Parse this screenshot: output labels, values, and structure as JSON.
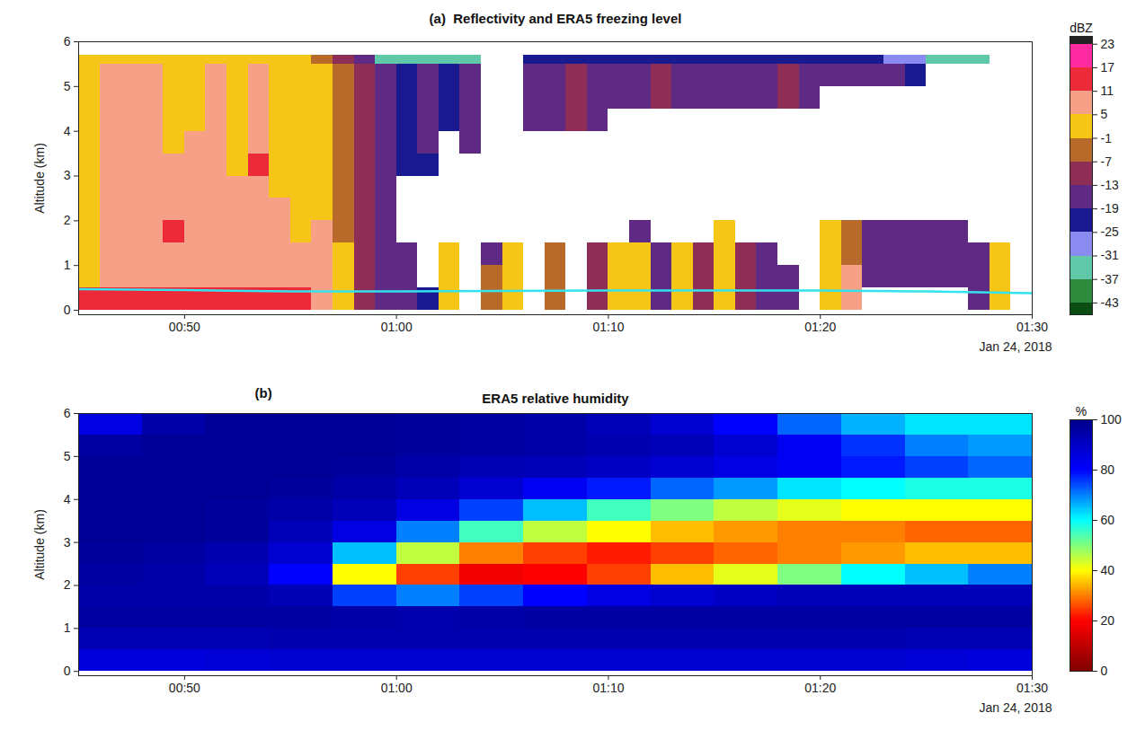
{
  "chart_data": [
    {
      "type": "heatmap",
      "title": "(a)  Reflectivity and ERA5 freezing level",
      "y_label": "Altitude (km)",
      "x_note": "Jan 24, 2018",
      "xlim": [
        45,
        90
      ],
      "xticks": [
        {
          "value": 50,
          "label": "00:50"
        },
        {
          "value": 60,
          "label": "01:00"
        },
        {
          "value": 70,
          "label": "01:10"
        },
        {
          "value": 80,
          "label": "01:20"
        },
        {
          "value": 90,
          "label": "01:30"
        }
      ],
      "ylim": [
        -0.1,
        6
      ],
      "yticks": [
        0,
        1,
        2,
        3,
        4,
        5,
        6
      ],
      "x_edges": [
        45,
        46,
        47,
        48,
        49,
        50,
        51,
        52,
        53,
        54,
        55,
        56,
        57,
        58,
        59,
        60,
        61,
        62,
        63,
        64,
        65,
        66,
        67,
        68,
        69,
        70,
        71,
        72,
        73,
        74,
        75,
        76,
        77,
        78,
        79,
        80,
        81,
        82,
        83,
        84,
        85,
        86,
        87,
        88,
        89,
        90
      ],
      "y_edges": [
        0,
        0.5,
        1,
        1.5,
        2,
        2.5,
        3,
        3.5,
        4,
        4.5,
        5,
        5.5,
        5.7
      ],
      "cells": [
        [
          14,
          14,
          14,
          14,
          14,
          14,
          14,
          14,
          14,
          14,
          14,
          8,
          2,
          -10,
          -16,
          -16,
          -22,
          2,
          null,
          -4,
          2,
          null,
          -4,
          null,
          -10,
          2,
          2,
          -16,
          2,
          -10,
          2,
          -10,
          -16,
          -16,
          null,
          2,
          8,
          null,
          null,
          null,
          null,
          null,
          -16,
          2,
          null
        ],
        [
          2,
          8,
          8,
          8,
          8,
          8,
          8,
          8,
          8,
          8,
          8,
          8,
          2,
          -10,
          -16,
          -16,
          null,
          2,
          null,
          -4,
          2,
          null,
          -4,
          null,
          -10,
          2,
          2,
          -16,
          2,
          -10,
          2,
          -10,
          -16,
          -16,
          null,
          2,
          8,
          -16,
          -16,
          -16,
          -16,
          -16,
          -16,
          2,
          null
        ],
        [
          2,
          8,
          8,
          8,
          8,
          8,
          8,
          8,
          8,
          8,
          8,
          8,
          2,
          -10,
          -16,
          -16,
          null,
          2,
          null,
          -16,
          2,
          null,
          -4,
          null,
          -10,
          2,
          2,
          -16,
          2,
          -10,
          2,
          -10,
          -16,
          null,
          null,
          2,
          -4,
          -16,
          -16,
          -16,
          -16,
          -16,
          -16,
          2,
          null
        ],
        [
          2,
          8,
          8,
          8,
          14,
          8,
          8,
          8,
          8,
          8,
          2,
          8,
          -4,
          -10,
          -16,
          null,
          null,
          null,
          null,
          null,
          null,
          null,
          null,
          null,
          null,
          null,
          -16,
          null,
          null,
          null,
          2,
          null,
          null,
          null,
          null,
          2,
          -4,
          -16,
          -16,
          -16,
          -16,
          -16,
          null,
          null,
          null
        ],
        [
          2,
          8,
          8,
          8,
          8,
          8,
          8,
          8,
          8,
          8,
          2,
          2,
          -4,
          -10,
          -16,
          null,
          null,
          null,
          null,
          null,
          null,
          null,
          null,
          null,
          null,
          null,
          null,
          null,
          null,
          null,
          null,
          null,
          null,
          null,
          null,
          null,
          null,
          null,
          null,
          null,
          null,
          null,
          null,
          null,
          null
        ],
        [
          2,
          8,
          8,
          8,
          8,
          8,
          8,
          8,
          8,
          2,
          2,
          2,
          -4,
          -10,
          -16,
          null,
          null,
          null,
          null,
          null,
          null,
          null,
          null,
          null,
          null,
          null,
          null,
          null,
          null,
          null,
          null,
          null,
          null,
          null,
          null,
          null,
          null,
          null,
          null,
          null,
          null,
          null,
          null,
          null,
          null
        ],
        [
          2,
          8,
          8,
          8,
          8,
          8,
          8,
          2,
          14,
          2,
          2,
          2,
          -4,
          -10,
          -16,
          -22,
          -22,
          null,
          null,
          null,
          null,
          null,
          null,
          null,
          null,
          null,
          null,
          null,
          null,
          null,
          null,
          null,
          null,
          null,
          null,
          null,
          null,
          null,
          null,
          null,
          null,
          null,
          null,
          null,
          null
        ],
        [
          2,
          8,
          8,
          8,
          2,
          8,
          8,
          2,
          8,
          2,
          2,
          2,
          -4,
          -10,
          -16,
          -22,
          -16,
          null,
          -16,
          null,
          null,
          null,
          null,
          null,
          null,
          null,
          null,
          null,
          null,
          null,
          null,
          null,
          null,
          null,
          null,
          null,
          null,
          null,
          null,
          null,
          null,
          null,
          null,
          null,
          null
        ],
        [
          2,
          8,
          8,
          8,
          2,
          2,
          8,
          2,
          8,
          2,
          2,
          2,
          -4,
          -10,
          -16,
          -22,
          -16,
          -22,
          -16,
          null,
          null,
          -16,
          -16,
          -10,
          -16,
          null,
          null,
          null,
          null,
          null,
          null,
          null,
          null,
          null,
          null,
          null,
          null,
          null,
          null,
          null,
          null,
          null,
          null,
          null,
          null
        ],
        [
          2,
          8,
          8,
          8,
          2,
          2,
          8,
          2,
          8,
          2,
          2,
          2,
          -4,
          -10,
          -16,
          -22,
          -16,
          -22,
          -16,
          null,
          null,
          -16,
          -16,
          -10,
          -16,
          -16,
          -16,
          -10,
          -16,
          -16,
          -16,
          -16,
          -16,
          -10,
          -16,
          null,
          null,
          null,
          null,
          null,
          null,
          null,
          null,
          null,
          null
        ],
        [
          2,
          8,
          8,
          8,
          2,
          2,
          8,
          2,
          8,
          2,
          2,
          2,
          -4,
          -10,
          -16,
          -22,
          -16,
          -22,
          -16,
          null,
          null,
          -16,
          -16,
          -10,
          -16,
          -16,
          -16,
          -10,
          -16,
          -16,
          -16,
          -16,
          -16,
          -10,
          -16,
          -16,
          -16,
          -16,
          -16,
          -22,
          null,
          null,
          null,
          null,
          null
        ],
        [
          2,
          2,
          2,
          2,
          2,
          2,
          2,
          2,
          2,
          2,
          2,
          -4,
          -10,
          -16,
          -34,
          -34,
          -34,
          -34,
          -34,
          null,
          null,
          -22,
          -22,
          -22,
          -22,
          -22,
          -22,
          -22,
          -22,
          -22,
          -22,
          -22,
          -22,
          -22,
          -22,
          -22,
          -22,
          -22,
          -28,
          -28,
          -34,
          -34,
          -34,
          null,
          null
        ]
      ],
      "line": {
        "x": [
          45,
          50,
          55,
          60,
          65,
          70,
          75,
          80,
          85,
          90
        ],
        "values": [
          0.47,
          0.45,
          0.42,
          0.42,
          0.43,
          0.44,
          0.44,
          0.44,
          0.42,
          0.38
        ],
        "color": "#33e3ee"
      },
      "colorbar": {
        "label": "dBZ",
        "range": [
          -46,
          25
        ],
        "ticks": [
          -43,
          -37,
          -31,
          -25,
          -19,
          -13,
          -7,
          -1,
          5,
          11,
          17,
          23
        ]
      }
    },
    {
      "type": "heatmap",
      "panel_label": "(b)",
      "title": "ERA5 relative humidity",
      "y_label": "Altitude (km)",
      "x_note": "Jan 24, 2018",
      "xlim": [
        45,
        90
      ],
      "xticks": [
        {
          "value": 50,
          "label": "00:50"
        },
        {
          "value": 60,
          "label": "01:00"
        },
        {
          "value": 70,
          "label": "01:10"
        },
        {
          "value": 80,
          "label": "01:20"
        },
        {
          "value": 90,
          "label": "01:30"
        }
      ],
      "ylim": [
        -0.1,
        6
      ],
      "yticks": [
        0,
        1,
        2,
        3,
        4,
        5,
        6
      ],
      "x_edges": [
        45,
        48,
        51,
        54,
        57,
        60,
        63,
        66,
        69,
        72,
        75,
        78,
        81,
        84,
        87,
        90
      ],
      "y_edges": [
        0,
        0.5,
        1,
        1.5,
        2,
        2.5,
        3,
        3.5,
        4,
        4.5,
        5,
        5.5,
        6
      ],
      "cells": [
        [
          86,
          86,
          87,
          88,
          88,
          88,
          88,
          88,
          88,
          88,
          88,
          88,
          88,
          87,
          86
        ],
        [
          93,
          93,
          93,
          94,
          94,
          94,
          94,
          94,
          94,
          94,
          94,
          94,
          94,
          93,
          93
        ],
        [
          96,
          96,
          96,
          96,
          95,
          94,
          95,
          96,
          96,
          96,
          96,
          96,
          96,
          96,
          96
        ],
        [
          95,
          95,
          95,
          93,
          75,
          70,
          75,
          80,
          85,
          88,
          90,
          92,
          92,
          92,
          92
        ],
        [
          96,
          95,
          92,
          80,
          40,
          25,
          18,
          20,
          25,
          35,
          42,
          50,
          60,
          65,
          70
        ],
        [
          97,
          96,
          94,
          88,
          65,
          45,
          30,
          25,
          22,
          25,
          28,
          30,
          32,
          35,
          35
        ],
        [
          98,
          98,
          97,
          92,
          85,
          70,
          55,
          45,
          40,
          35,
          32,
          30,
          30,
          28,
          28
        ],
        [
          98,
          98,
          97,
          95,
          92,
          85,
          75,
          65,
          55,
          50,
          45,
          42,
          40,
          40,
          40
        ],
        [
          98,
          98,
          98,
          97,
          95,
          92,
          88,
          82,
          78,
          72,
          68,
          62,
          60,
          58,
          58
        ],
        [
          98,
          98,
          98,
          98,
          97,
          95,
          93,
          92,
          90,
          88,
          85,
          82,
          78,
          75,
          72
        ],
        [
          96,
          98,
          98,
          98,
          98,
          97,
          96,
          95,
          94,
          92,
          88,
          82,
          76,
          70,
          68
        ],
        [
          85,
          95,
          98,
          98,
          98,
          97,
          96,
          95,
          92,
          88,
          80,
          72,
          66,
          62,
          62
        ]
      ],
      "colorbar": {
        "label": "%",
        "range": [
          0,
          100
        ],
        "ticks": [
          0,
          20,
          40,
          60,
          80,
          100
        ]
      }
    }
  ]
}
